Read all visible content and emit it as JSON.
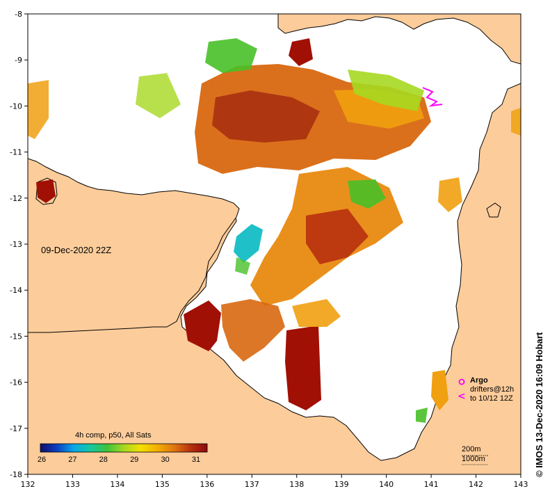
{
  "map": {
    "timestamp": "09-Dec-2020 22Z",
    "composite_label": "4h comp, p50, All Sats",
    "credit": "IMOS 13-Dec-2020 16:09 Hobart",
    "credit_symbol": "©",
    "x_ticks": [
      "132",
      "133",
      "134",
      "135",
      "136",
      "137",
      "138",
      "139",
      "140",
      "141",
      "142",
      "143"
    ],
    "y_ticks": [
      "-8",
      "-9",
      "-10",
      "-11",
      "-12",
      "-13",
      "-14",
      "-15",
      "-16",
      "-17",
      "-18"
    ],
    "colorbar": {
      "ticks": [
        "26",
        "27",
        "28",
        "29",
        "30",
        "31"
      ],
      "stops": [
        "#10106a",
        "#0a3fbf",
        "#08a8e8",
        "#16c8a0",
        "#3cc23a",
        "#a6d820",
        "#f2e000",
        "#f2b000",
        "#e07810",
        "#b83010",
        "#8c0a0a"
      ]
    },
    "legend": {
      "argo_label": "Argo",
      "drifters_label": "drifters@12h",
      "drifters_date": "to 10/12 12Z",
      "argo_symbol": "○",
      "drifter_symbol": "<",
      "marker_color": "#ff00ff"
    },
    "depth": {
      "line1": "200m",
      "line2": "1000m"
    },
    "colors": {
      "land": "#fccc9a",
      "ocean": "#ffffff",
      "hot": "#a01005",
      "warm": "#d86810",
      "mid": "#f0a010",
      "green": "#48c028",
      "cyan": "#20c0c8"
    }
  }
}
